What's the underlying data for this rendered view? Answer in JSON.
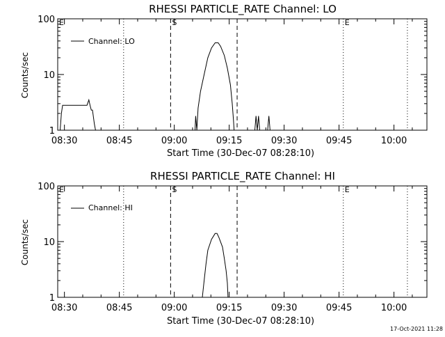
{
  "footer": {
    "timestamp": "17-Oct-2021 11:28"
  },
  "chart_data": [
    {
      "type": "line",
      "title": "RHESSI PARTICLE_RATE Channel: LO",
      "xlabel": "Start Time (30-Dec-07 08:28:10)",
      "ylabel": "Counts/sec",
      "y_scale": "log",
      "ylim": [
        1,
        100
      ],
      "xlim": [
        "08:28:10",
        "10:09:00"
      ],
      "x_ticks": [
        "08:30",
        "08:45",
        "09:00",
        "09:15",
        "09:30",
        "09:45",
        "10:00"
      ],
      "y_ticks": [
        "1",
        "10",
        "100"
      ],
      "legend": {
        "label": "Channel: LO",
        "position": "top-left"
      },
      "markers": [
        {
          "label": "E",
          "time": "08:28:10",
          "style": "dotted"
        },
        {
          "label": "",
          "time": "08:46:10",
          "style": "dotted"
        },
        {
          "label": "S",
          "time": "08:59:00",
          "style": "dashed"
        },
        {
          "label": "",
          "time": "09:17:10",
          "style": "dashed"
        },
        {
          "label": "E",
          "time": "09:46:10",
          "style": "dotted"
        },
        {
          "label": "",
          "time": "10:03:40",
          "style": "dotted"
        }
      ],
      "series": [
        {
          "name": "Channel: LO",
          "segments": [
            [
              [
                "08:28:50",
                1
              ],
              [
                "08:29:10",
                2
              ],
              [
                "08:29:30",
                2.8
              ],
              [
                "08:36:10",
                2.8
              ],
              [
                "08:36:40",
                3.5
              ],
              [
                "08:37:00",
                2.8
              ],
              [
                "08:37:20",
                2.3
              ],
              [
                "08:37:40",
                2.3
              ],
              [
                "08:38:10",
                1.3
              ],
              [
                "08:38:30",
                1
              ]
            ],
            [
              [
                "09:05:40",
                1
              ],
              [
                "09:05:50",
                1.8
              ],
              [
                "09:06:10",
                1
              ],
              [
                "09:06:20",
                1.6
              ],
              [
                "09:06:30",
                2.5
              ],
              [
                "09:07:10",
                5
              ],
              [
                "09:08:10",
                10
              ],
              [
                "09:09:10",
                20
              ],
              [
                "09:10:10",
                30
              ],
              [
                "09:11:10",
                37
              ],
              [
                "09:12:00",
                37
              ],
              [
                "09:12:40",
                32
              ],
              [
                "09:13:40",
                22
              ],
              [
                "09:14:30",
                13
              ],
              [
                "09:15:20",
                6.5
              ],
              [
                "09:15:50",
                3
              ],
              [
                "09:16:10",
                1.5
              ],
              [
                "09:16:20",
                1
              ]
            ],
            [
              [
                "09:22:00",
                1
              ],
              [
                "09:22:20",
                1.8
              ],
              [
                "09:22:40",
                1
              ],
              [
                "09:23:00",
                1.8
              ],
              [
                "09:23:20",
                1
              ]
            ],
            [
              [
                "09:25:30",
                1
              ],
              [
                "09:25:50",
                1.8
              ],
              [
                "09:26:10",
                1
              ]
            ]
          ]
        }
      ]
    },
    {
      "type": "line",
      "title": "RHESSI PARTICLE_RATE Channel: HI",
      "xlabel": "Start Time (30-Dec-07 08:28:10)",
      "ylabel": "Counts/sec",
      "y_scale": "log",
      "ylim": [
        1,
        100
      ],
      "xlim": [
        "08:28:10",
        "10:09:00"
      ],
      "x_ticks": [
        "08:30",
        "08:45",
        "09:00",
        "09:15",
        "09:30",
        "09:45",
        "10:00"
      ],
      "y_ticks": [
        "1",
        "10",
        "100"
      ],
      "legend": {
        "label": "Channel: HI",
        "position": "top-left"
      },
      "markers": [
        {
          "label": "E",
          "time": "08:28:10",
          "style": "dotted"
        },
        {
          "label": "",
          "time": "08:46:10",
          "style": "dotted"
        },
        {
          "label": "S",
          "time": "08:59:00",
          "style": "dashed"
        },
        {
          "label": "",
          "time": "09:17:10",
          "style": "dashed"
        },
        {
          "label": "E",
          "time": "09:46:10",
          "style": "dotted"
        },
        {
          "label": "",
          "time": "10:03:40",
          "style": "dotted"
        }
      ],
      "series": [
        {
          "name": "Channel: HI",
          "segments": [
            [
              [
                "09:07:40",
                1
              ],
              [
                "09:08:10",
                2
              ],
              [
                "09:08:40",
                4
              ],
              [
                "09:09:10",
                7
              ],
              [
                "09:10:10",
                11
              ],
              [
                "09:11:10",
                14
              ],
              [
                "09:11:40",
                14
              ],
              [
                "09:12:10",
                12
              ],
              [
                "09:13:10",
                8
              ],
              [
                "09:13:40",
                5
              ],
              [
                "09:14:10",
                3
              ],
              [
                "09:14:30",
                1.8
              ],
              [
                "09:14:40",
                1
              ]
            ]
          ]
        }
      ]
    }
  ]
}
